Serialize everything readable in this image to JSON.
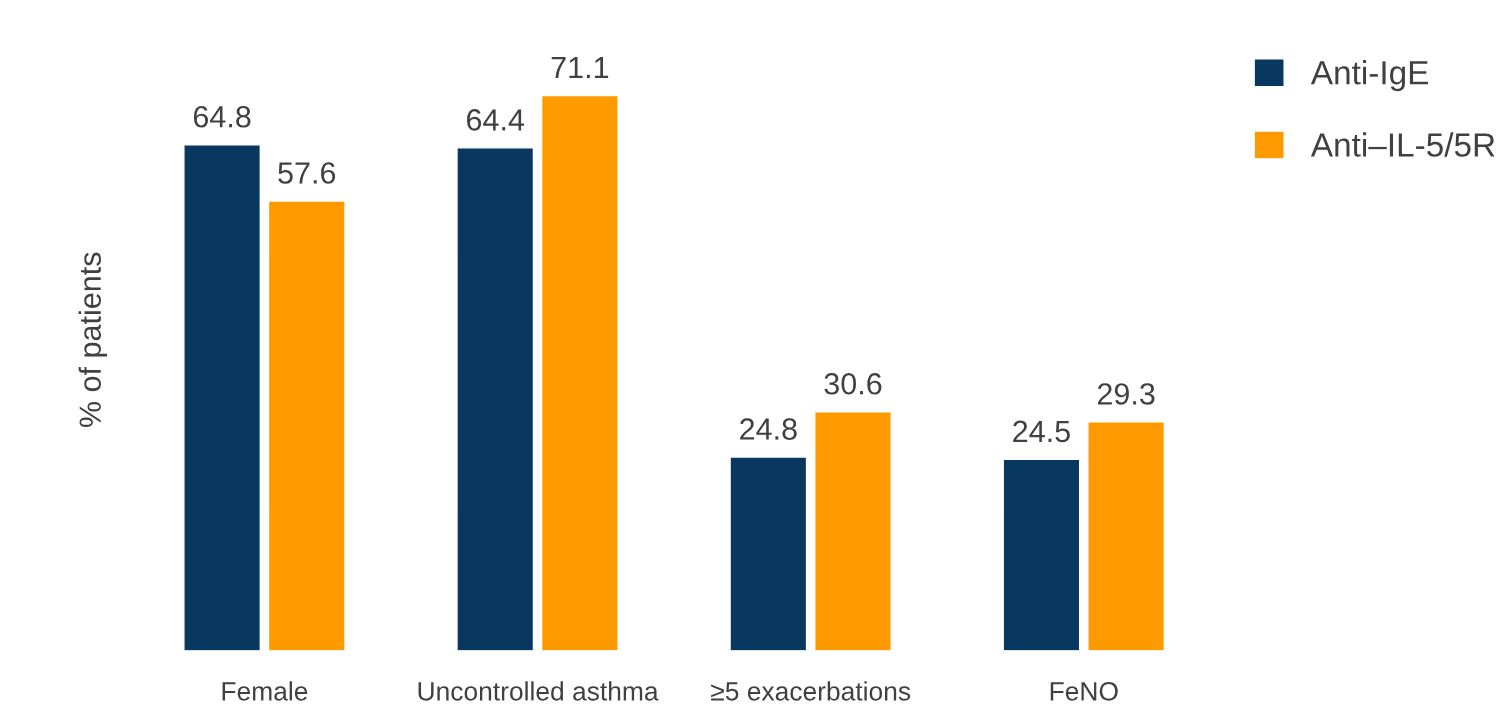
{
  "chart_data": {
    "type": "bar",
    "ylabel": "% of patients",
    "categories": [
      "Female",
      "Uncontrolled asthma",
      "≥5 exacerbations",
      "FeNO"
    ],
    "series": [
      {
        "name": "Anti-IgE",
        "color": "#08375f",
        "values": [
          64.8,
          64.4,
          24.8,
          24.5
        ]
      },
      {
        "name": "Anti–IL-5/5R",
        "color": "#fe9900",
        "values": [
          57.6,
          71.1,
          30.6,
          29.3
        ]
      }
    ],
    "data_labels": true,
    "legend": "top right",
    "grid": false
  }
}
